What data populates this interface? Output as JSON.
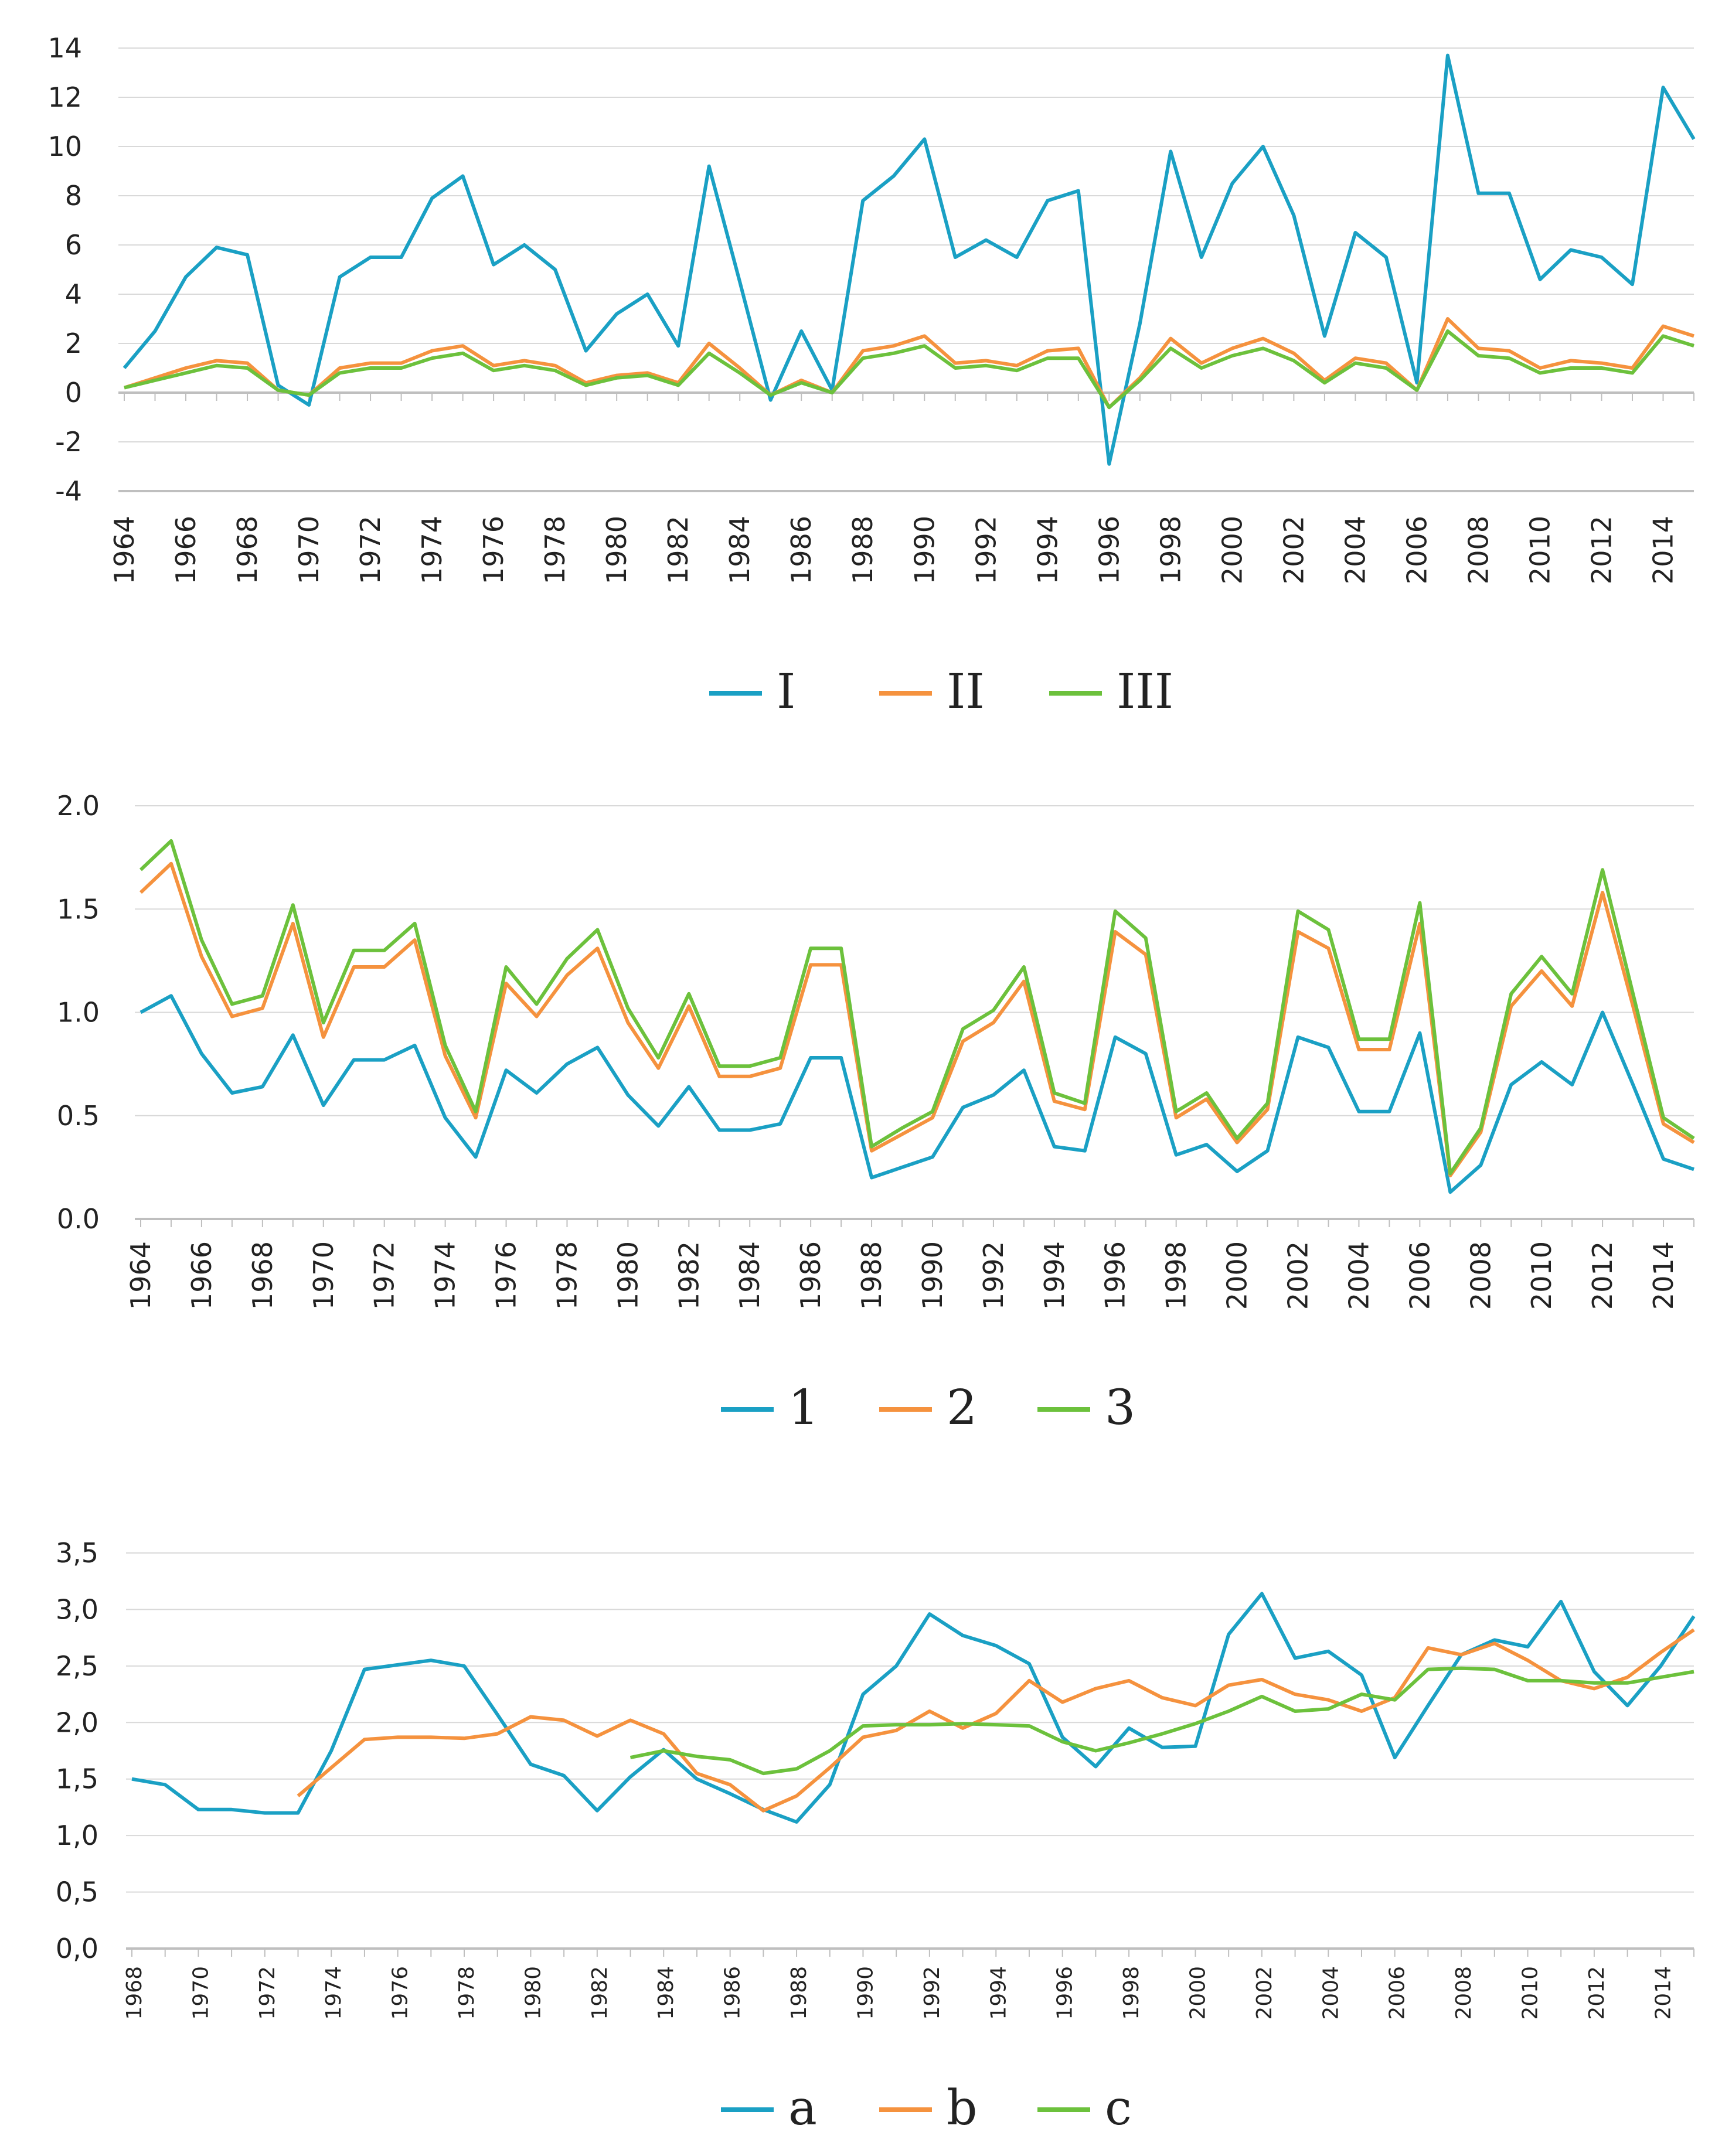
{
  "chart_data": [
    {
      "type": "line",
      "x": [
        1964,
        1965,
        1966,
        1967,
        1968,
        1969,
        1970,
        1971,
        1972,
        1973,
        1974,
        1975,
        1976,
        1977,
        1978,
        1979,
        1980,
        1981,
        1982,
        1983,
        1984,
        1985,
        1986,
        1987,
        1988,
        1989,
        1990,
        1991,
        1992,
        1993,
        1994,
        1995,
        1996,
        1997,
        1998,
        1999,
        2000,
        2001,
        2002,
        2003,
        2004,
        2005,
        2006,
        2007,
        2008,
        2009,
        2010,
        2011,
        2012,
        2013,
        2014,
        2015
      ],
      "xticks": [
        "1964",
        "1966",
        "1968",
        "1970",
        "1972",
        "1974",
        "1976",
        "1978",
        "1980",
        "1982",
        "1984",
        "1986",
        "1988",
        "1990",
        "1992",
        "1994",
        "1996",
        "1998",
        "2000",
        "2002",
        "2004",
        "2006",
        "2008",
        "2010",
        "2012",
        "2014"
      ],
      "yticks": [
        "14",
        "12",
        "10",
        "8",
        "6",
        "4",
        "2",
        "0",
        "-2",
        "-4"
      ],
      "ylim": [
        -4,
        14
      ],
      "grid": true,
      "legend_position": "bottom",
      "series": [
        {
          "name": "I",
          "color": "#1aa0c4",
          "values": [
            1.0,
            2.5,
            4.7,
            5.9,
            5.6,
            0.3,
            -0.5,
            4.7,
            5.5,
            5.5,
            7.9,
            8.8,
            5.2,
            6.0,
            5.0,
            1.7,
            3.2,
            4.0,
            1.9,
            9.2,
            4.5,
            -0.3,
            2.5,
            0.1,
            7.8,
            8.8,
            10.3,
            5.5,
            6.2,
            5.5,
            7.8,
            8.2,
            -2.9,
            2.8,
            9.8,
            5.5,
            8.5,
            10.0,
            7.2,
            2.3,
            6.5,
            5.5,
            0.4,
            13.7,
            8.1,
            8.1,
            4.6,
            5.8,
            5.5,
            4.4,
            12.4,
            10.3
          ]
        },
        {
          "name": "II",
          "color": "#f5923e",
          "values": [
            0.2,
            0.6,
            1.0,
            1.3,
            1.2,
            0.1,
            -0.1,
            1.0,
            1.2,
            1.2,
            1.7,
            1.9,
            1.1,
            1.3,
            1.1,
            0.4,
            0.7,
            0.8,
            0.4,
            2.0,
            1.0,
            -0.1,
            0.5,
            0.0,
            1.7,
            1.9,
            2.3,
            1.2,
            1.3,
            1.1,
            1.7,
            1.8,
            -0.6,
            0.6,
            2.2,
            1.2,
            1.8,
            2.2,
            1.6,
            0.5,
            1.4,
            1.2,
            0.1,
            3.0,
            1.8,
            1.7,
            1.0,
            1.3,
            1.2,
            1.0,
            2.7,
            2.3
          ]
        },
        {
          "name": "III",
          "color": "#6cc13c",
          "values": [
            0.2,
            0.5,
            0.8,
            1.1,
            1.0,
            0.1,
            -0.1,
            0.8,
            1.0,
            1.0,
            1.4,
            1.6,
            0.9,
            1.1,
            0.9,
            0.3,
            0.6,
            0.7,
            0.3,
            1.6,
            0.8,
            -0.1,
            0.4,
            0.0,
            1.4,
            1.6,
            1.9,
            1.0,
            1.1,
            0.9,
            1.4,
            1.4,
            -0.6,
            0.5,
            1.8,
            1.0,
            1.5,
            1.8,
            1.3,
            0.4,
            1.2,
            1.0,
            0.1,
            2.5,
            1.5,
            1.4,
            0.8,
            1.0,
            1.0,
            0.8,
            2.3,
            1.9
          ]
        }
      ]
    },
    {
      "type": "line",
      "x": [
        1964,
        1965,
        1966,
        1967,
        1968,
        1969,
        1970,
        1971,
        1972,
        1973,
        1974,
        1975,
        1976,
        1977,
        1978,
        1979,
        1980,
        1981,
        1982,
        1983,
        1984,
        1985,
        1986,
        1987,
        1988,
        1989,
        1990,
        1991,
        1992,
        1993,
        1994,
        1995,
        1996,
        1997,
        1998,
        1999,
        2000,
        2001,
        2002,
        2003,
        2004,
        2005,
        2006,
        2007,
        2008,
        2009,
        2010,
        2011,
        2012,
        2013,
        2014,
        2015
      ],
      "xticks": [
        "1964",
        "1966",
        "1968",
        "1970",
        "1972",
        "1974",
        "1976",
        "1978",
        "1980",
        "1982",
        "1984",
        "1986",
        "1988",
        "1990",
        "1992",
        "1994",
        "1996",
        "1998",
        "2000",
        "2002",
        "2004",
        "2006",
        "2008",
        "2010",
        "2012",
        "2014"
      ],
      "yticks": [
        "2.0",
        "1.5",
        "1.0",
        "0.5",
        "0.0"
      ],
      "ylim": [
        0,
        2.0
      ],
      "grid": true,
      "legend_position": "bottom",
      "series": [
        {
          "name": "1",
          "color": "#1aa0c4",
          "values": [
            1.0,
            1.08,
            0.8,
            0.61,
            0.64,
            0.89,
            0.55,
            0.77,
            0.77,
            0.84,
            0.49,
            0.3,
            0.72,
            0.61,
            0.75,
            0.83,
            0.6,
            0.45,
            0.64,
            0.43,
            0.43,
            0.46,
            0.78,
            0.78,
            0.2,
            0.25,
            0.3,
            0.54,
            0.6,
            0.72,
            0.35,
            0.33,
            0.88,
            0.8,
            0.31,
            0.36,
            0.23,
            0.33,
            0.88,
            0.83,
            0.52,
            0.52,
            0.9,
            0.13,
            0.26,
            0.65,
            0.76,
            0.65,
            1.0,
            0.65,
            0.29,
            0.24
          ]
        },
        {
          "name": "2",
          "color": "#f5923e",
          "values": [
            1.58,
            1.72,
            1.27,
            0.98,
            1.02,
            1.43,
            0.88,
            1.22,
            1.22,
            1.35,
            0.79,
            0.49,
            1.14,
            0.98,
            1.18,
            1.31,
            0.95,
            0.73,
            1.03,
            0.69,
            0.69,
            0.73,
            1.23,
            1.23,
            0.33,
            0.41,
            0.49,
            0.86,
            0.95,
            1.15,
            0.57,
            0.53,
            1.39,
            1.28,
            0.49,
            0.58,
            0.37,
            0.53,
            1.39,
            1.31,
            0.82,
            0.82,
            1.43,
            0.21,
            0.42,
            1.03,
            1.2,
            1.03,
            1.58,
            1.03,
            0.46,
            0.37
          ]
        },
        {
          "name": "3",
          "color": "#6cc13c",
          "values": [
            1.69,
            1.83,
            1.35,
            1.04,
            1.08,
            1.52,
            0.95,
            1.3,
            1.3,
            1.43,
            0.84,
            0.52,
            1.22,
            1.04,
            1.26,
            1.4,
            1.02,
            0.78,
            1.09,
            0.74,
            0.74,
            0.78,
            1.31,
            1.31,
            0.35,
            0.44,
            0.52,
            0.92,
            1.01,
            1.22,
            0.61,
            0.56,
            1.49,
            1.36,
            0.52,
            0.61,
            0.39,
            0.56,
            1.49,
            1.4,
            0.87,
            0.87,
            1.53,
            0.22,
            0.44,
            1.09,
            1.27,
            1.09,
            1.69,
            1.09,
            0.49,
            0.39
          ]
        }
      ]
    },
    {
      "type": "line",
      "x": [
        1968,
        1969,
        1970,
        1971,
        1972,
        1973,
        1974,
        1975,
        1976,
        1977,
        1978,
        1979,
        1980,
        1981,
        1982,
        1983,
        1984,
        1985,
        1986,
        1987,
        1988,
        1989,
        1990,
        1991,
        1992,
        1993,
        1994,
        1995,
        1996,
        1997,
        1998,
        1999,
        2000,
        2001,
        2002,
        2003,
        2004,
        2005,
        2006,
        2007,
        2008,
        2009,
        2010,
        2011,
        2012,
        2013,
        2014,
        2015
      ],
      "xticks": [
        "1968",
        "1970",
        "1972",
        "1974",
        "1976",
        "1978",
        "1980",
        "1982",
        "1984",
        "1986",
        "1988",
        "1990",
        "1992",
        "1994",
        "1996",
        "1998",
        "2000",
        "2002",
        "2004",
        "2006",
        "2008",
        "2010",
        "2012",
        "2014"
      ],
      "yticks": [
        "3,5",
        "3,0",
        "2,5",
        "2,0",
        "1,5",
        "1,0",
        "0,5",
        "0,0"
      ],
      "ylim": [
        0,
        3.5
      ],
      "grid": true,
      "legend_position": "bottom",
      "series": [
        {
          "name": "a",
          "color": "#1aa0c4",
          "values": [
            1.5,
            1.45,
            1.23,
            1.23,
            1.2,
            1.2,
            1.75,
            2.47,
            2.51,
            2.55,
            2.5,
            2.07,
            1.63,
            1.53,
            1.22,
            1.52,
            1.76,
            1.5,
            1.37,
            1.23,
            1.12,
            1.45,
            2.25,
            2.5,
            2.96,
            2.77,
            2.68,
            2.52,
            1.87,
            1.61,
            1.95,
            1.78,
            1.79,
            2.78,
            3.14,
            2.57,
            2.63,
            2.42,
            1.69,
            2.15,
            2.6,
            2.73,
            2.67,
            3.07,
            2.45,
            2.15,
            2.5,
            2.94
          ]
        },
        {
          "name": "b",
          "color": "#f5923e",
          "values": [
            null,
            null,
            null,
            null,
            null,
            1.35,
            1.6,
            1.85,
            1.87,
            1.87,
            1.86,
            1.9,
            2.05,
            2.02,
            1.88,
            2.02,
            1.9,
            1.55,
            1.45,
            1.22,
            1.35,
            1.6,
            1.87,
            1.93,
            2.1,
            1.95,
            2.08,
            2.37,
            2.18,
            2.3,
            2.37,
            2.22,
            2.15,
            2.33,
            2.38,
            2.25,
            2.2,
            2.1,
            2.22,
            2.66,
            2.6,
            2.7,
            2.55,
            2.37,
            2.3,
            2.4,
            2.62,
            2.82
          ]
        },
        {
          "name": "c",
          "color": "#6cc13c",
          "values": [
            null,
            null,
            null,
            null,
            null,
            null,
            null,
            null,
            null,
            null,
            null,
            null,
            null,
            null,
            null,
            1.69,
            1.75,
            1.7,
            1.67,
            1.55,
            1.59,
            1.75,
            1.97,
            1.98,
            1.98,
            1.99,
            1.98,
            1.97,
            1.83,
            1.75,
            1.82,
            1.9,
            1.99,
            2.1,
            2.23,
            2.1,
            2.12,
            2.25,
            2.2,
            2.47,
            2.48,
            2.47,
            2.37,
            2.37,
            2.35,
            2.35,
            2.4,
            2.45
          ]
        }
      ]
    }
  ]
}
